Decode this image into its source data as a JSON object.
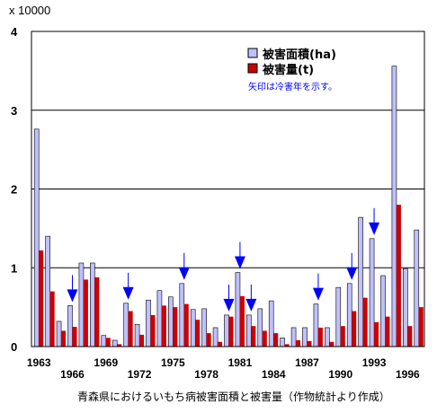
{
  "chart_data": {
    "type": "bar",
    "y_unit": "x 10000",
    "ylim": [
      0,
      4
    ],
    "yticks": [
      "0",
      "1",
      "2",
      "3",
      "4"
    ],
    "grid": true,
    "categories": [
      "1963",
      "1964",
      "1965",
      "1966",
      "1967",
      "1968",
      "1969",
      "1970",
      "1971",
      "1972",
      "1973",
      "1974",
      "1975",
      "1976",
      "1977",
      "1978",
      "1979",
      "1980",
      "1981",
      "1982",
      "1983",
      "1984",
      "1985",
      "1986",
      "1987",
      "1988",
      "1989",
      "1990",
      "1991",
      "1992",
      "1993",
      "1994",
      "1995",
      "1996",
      "1997"
    ],
    "x_labels": [
      "1963",
      "1966",
      "1969",
      "1972",
      "1975",
      "1978",
      "1981",
      "1984",
      "1987",
      "1990",
      "1993",
      "1996"
    ],
    "series": [
      {
        "name": "被害面積(ha)",
        "color": "#c0c0ff",
        "values": [
          2.76,
          1.4,
          0.32,
          0.52,
          1.06,
          1.06,
          0.14,
          0.08,
          0.55,
          0.28,
          0.59,
          0.71,
          0.63,
          0.8,
          0.47,
          0.48,
          0.24,
          0.4,
          0.94,
          0.4,
          0.48,
          0.58,
          0.11,
          0.24,
          0.24,
          0.54,
          0.24,
          0.75,
          0.8,
          1.64,
          1.37,
          0.9,
          3.56,
          0.99,
          1.48
        ]
      },
      {
        "name": "被害量(t)",
        "color": "#cc0000",
        "values": [
          1.22,
          0.7,
          0.2,
          0.25,
          0.85,
          0.88,
          0.11,
          0.03,
          0.45,
          0.15,
          0.4,
          0.52,
          0.5,
          0.54,
          0.34,
          0.17,
          0.06,
          0.38,
          0.64,
          0.26,
          0.2,
          0.17,
          0.03,
          0.08,
          0.07,
          0.24,
          0.06,
          0.26,
          0.45,
          0.62,
          0.31,
          0.38,
          1.8,
          0.26,
          0.5
        ]
      }
    ],
    "cold_years": [
      "1966",
      "1971",
      "1976",
      "1980",
      "1981",
      "1982",
      "1988",
      "1991",
      "1993"
    ],
    "legend_position": "top-right",
    "note": "矢印は冷害年を示す。",
    "caption": "青森県におけるいもち病被害面積と被害量（作物統計より作成）"
  }
}
